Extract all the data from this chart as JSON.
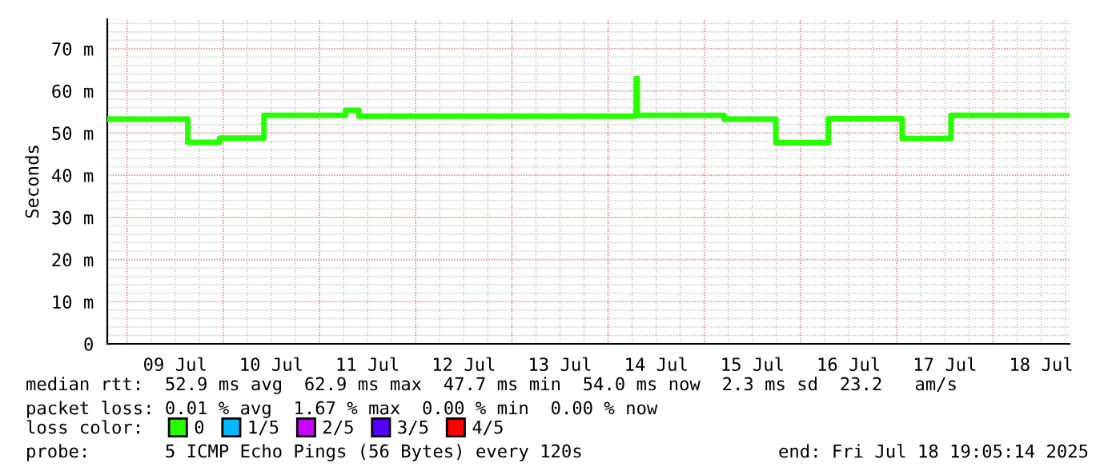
{
  "chart_data": {
    "type": "step",
    "ylabel": "Seconds",
    "x": [
      "2025-07-08T19:05",
      "2025-07-09T15:10",
      "2025-07-09T23:05",
      "2025-07-10T10:10",
      "2025-07-11T06:30",
      "2025-07-11T09:50",
      "2025-07-14T07:00",
      "2025-07-14T07:15",
      "2025-07-15T04:55",
      "2025-07-15T17:50",
      "2025-07-16T06:55",
      "2025-07-17T01:20",
      "2025-07-17T13:30",
      "2025-07-18T19:05"
    ],
    "series": [
      {
        "name": "0",
        "color": "#26ff00",
        "values": [
          53.3,
          47.8,
          48.8,
          54.2,
          55.4,
          54.0,
          62.9,
          54.2,
          53.3,
          47.7,
          53.4,
          48.7,
          54.2,
          54.2
        ]
      },
      {
        "name": "1/5",
        "color": "#00b8ff",
        "values": [
          null,
          null,
          null,
          null,
          null,
          null,
          null,
          null,
          null,
          null,
          null,
          null,
          null,
          null
        ]
      },
      {
        "name": "2/5",
        "color": "#cc00ff",
        "values": [
          null,
          null,
          null,
          null,
          null,
          null,
          null,
          null,
          null,
          null,
          null,
          null,
          null,
          null
        ]
      },
      {
        "name": "3/5",
        "color": "#5500ff",
        "values": [
          null,
          null,
          null,
          null,
          null,
          null,
          null,
          null,
          null,
          null,
          null,
          null,
          null,
          null
        ]
      },
      {
        "name": "4/5",
        "color": "#ff0000",
        "values": [
          null,
          null,
          null,
          null,
          null,
          null,
          null,
          null,
          null,
          null,
          null,
          null,
          null,
          null
        ]
      }
    ],
    "legend_title": "loss color:",
    "legend": "bottom",
    "xlim": [
      "2025-07-08T19:05",
      "2025-07-18T19:05"
    ],
    "xticks": [
      {
        "value": "2025-07-09T12:00",
        "label": "09 Jul"
      },
      {
        "value": "2025-07-10T12:00",
        "label": "10 Jul"
      },
      {
        "value": "2025-07-11T12:00",
        "label": "11 Jul"
      },
      {
        "value": "2025-07-12T12:00",
        "label": "12 Jul"
      },
      {
        "value": "2025-07-13T12:00",
        "label": "13 Jul"
      },
      {
        "value": "2025-07-14T12:00",
        "label": "14 Jul"
      },
      {
        "value": "2025-07-15T12:00",
        "label": "15 Jul"
      },
      {
        "value": "2025-07-16T12:00",
        "label": "16 Jul"
      },
      {
        "value": "2025-07-17T12:00",
        "label": "17 Jul"
      },
      {
        "value": "2025-07-18T12:00",
        "label": "18 Jul"
      }
    ],
    "ylim": [
      0,
      77
    ],
    "yticks": [
      0,
      {
        "value": 10,
        "label": "10 m"
      },
      {
        "value": 20,
        "label": "20 m"
      },
      {
        "value": 30,
        "label": "30 m"
      },
      {
        "value": 40,
        "label": "40 m"
      },
      {
        "value": 50,
        "label": "50 m"
      },
      {
        "value": 60,
        "label": "60 m"
      },
      {
        "value": 70,
        "label": "70 m"
      }
    ],
    "grid": true,
    "annotations": [
      "median rtt:  52.9 ms avg  62.9 ms max  47.7 ms min  54.0 ms now  2.3 ms sd  23.2   am/s",
      "packet loss: 0.01 % avg  1.67 % max  0.00 % min  0.00 % now",
      "probe:       5 ICMP Echo Pings (56 Bytes) every 120s",
      "end: Fri Jul 18 19:05:14 2025"
    ]
  }
}
